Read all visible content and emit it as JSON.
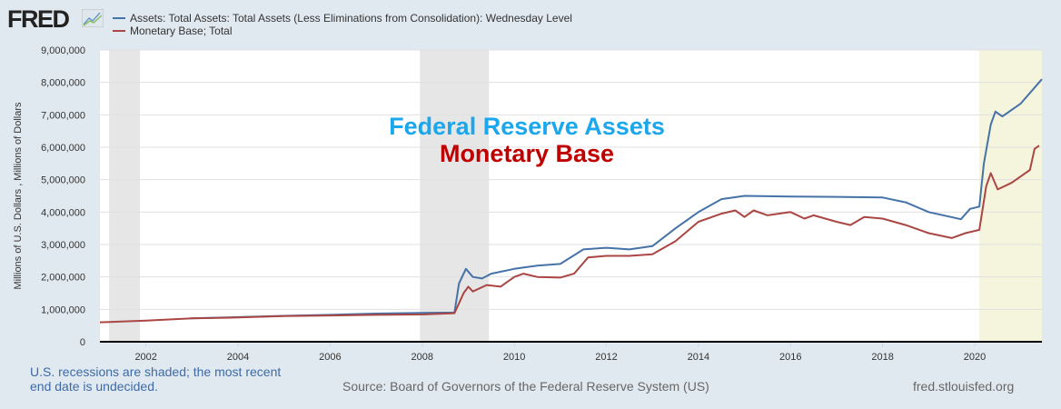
{
  "logo": "FRED",
  "chart_data": {
    "type": "line",
    "title": "",
    "ylabel": "Millions of U.S. Dollars , Millions of Dollars",
    "xlabel": "",
    "xlim": [
      2001.0,
      2021.46
    ],
    "ylim": [
      0,
      9000000
    ],
    "grid": true,
    "legend_position": "top-left",
    "x_ticks": [
      2002,
      2004,
      2006,
      2008,
      2010,
      2012,
      2014,
      2016,
      2018,
      2020
    ],
    "y_ticks": [
      0,
      1000000,
      2000000,
      3000000,
      4000000,
      5000000,
      6000000,
      7000000,
      8000000,
      9000000
    ],
    "y_tick_labels": [
      "0",
      "1,000,000",
      "2,000,000",
      "3,000,000",
      "4,000,000",
      "5,000,000",
      "6,000,000",
      "7,000,000",
      "8,000,000",
      "9,000,000"
    ],
    "recessions": [
      [
        2001.2,
        2001.87
      ],
      [
        2007.95,
        2009.45
      ],
      [
        2020.1,
        2021.46
      ]
    ],
    "annotations": [
      {
        "text": "Federal Reserve Assets",
        "color": "#1aa7ec"
      },
      {
        "text": "Monetary Base",
        "color": "#c00000"
      }
    ],
    "series": [
      {
        "name": "Assets: Total Assets: Total Assets (Less Eliminations from Consolidation): Wednesday Level",
        "color": "#4572a7",
        "x": [
          2002.97,
          2004,
          2005,
          2006,
          2007,
          2008,
          2008.7,
          2008.8,
          2008.95,
          2009.1,
          2009.3,
          2009.5,
          2010,
          2010.5,
          2011,
          2011.5,
          2012,
          2012.5,
          2013,
          2013.5,
          2014,
          2014.5,
          2015,
          2016,
          2017,
          2018,
          2018.5,
          2019,
          2019.7,
          2019.9,
          2020.1,
          2020.2,
          2020.35,
          2020.45,
          2020.6,
          2021,
          2021.46
        ],
        "y": [
          720000,
          760000,
          800000,
          830000,
          870000,
          890000,
          900000,
          1800000,
          2250000,
          2000000,
          1950000,
          2100000,
          2250000,
          2350000,
          2400000,
          2850000,
          2900000,
          2850000,
          2950000,
          3500000,
          4000000,
          4400000,
          4500000,
          4480000,
          4470000,
          4450000,
          4300000,
          4000000,
          3780000,
          4100000,
          4170000,
          5500000,
          6700000,
          7100000,
          6950000,
          7350000,
          8100000
        ]
      },
      {
        "name": "Monetary Base; Total",
        "color": "#aa4643",
        "x": [
          2001,
          2002,
          2003,
          2004,
          2005,
          2006,
          2007,
          2008,
          2008.7,
          2008.9,
          2009,
          2009.1,
          2009.4,
          2009.7,
          2010,
          2010.2,
          2010.5,
          2011,
          2011.3,
          2011.6,
          2012,
          2012.5,
          2013,
          2013.5,
          2014,
          2014.5,
          2014.8,
          2015,
          2015.2,
          2015.5,
          2016,
          2016.3,
          2016.5,
          2017,
          2017.3,
          2017.6,
          2018,
          2018.5,
          2019,
          2019.5,
          2019.8,
          2020.1,
          2020.25,
          2020.35,
          2020.5,
          2020.8,
          2021,
          2021.2,
          2021.3,
          2021.4
        ],
        "y": [
          600000,
          650000,
          720000,
          750000,
          790000,
          810000,
          830000,
          840000,
          880000,
          1500000,
          1700000,
          1550000,
          1750000,
          1700000,
          2000000,
          2100000,
          2000000,
          1980000,
          2100000,
          2600000,
          2650000,
          2650000,
          2700000,
          3100000,
          3700000,
          3950000,
          4050000,
          3850000,
          4050000,
          3900000,
          4000000,
          3800000,
          3900000,
          3700000,
          3600000,
          3850000,
          3800000,
          3600000,
          3350000,
          3200000,
          3350000,
          3450000,
          4800000,
          5200000,
          4700000,
          4900000,
          5100000,
          5300000,
          5950000,
          6050000
        ]
      }
    ]
  },
  "footer": {
    "recession_note_1": "U.S. recessions are shaded; the most recent",
    "recession_note_2": "end date is undecided.",
    "source": "Source: Board of Governors of the Federal Reserve System (US)",
    "site": "fred.stlouisfed.org"
  }
}
